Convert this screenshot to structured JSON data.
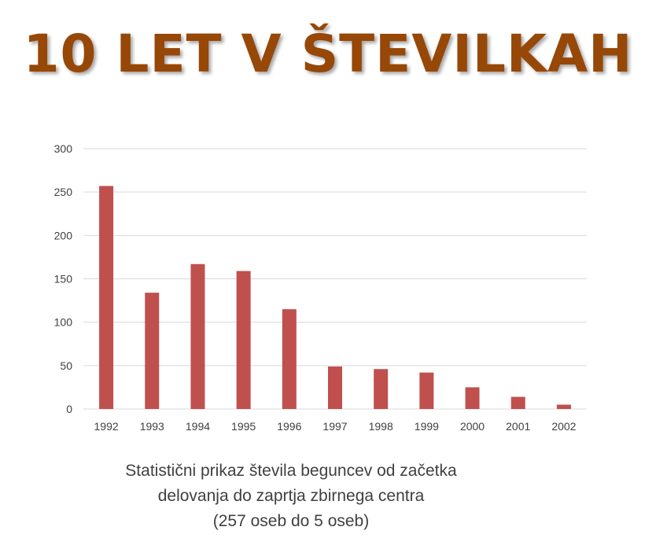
{
  "headline": "10 LET V ŠTEVILKAH",
  "caption": {
    "line1": "Statistični prikaz števila beguncev od začetka",
    "line2": "delovanja do zaprtja zbirnega centra",
    "line3": "(257 oseb do 5 oseb)"
  },
  "colors": {
    "headline": "#974706",
    "bar": "#c0504d",
    "grid": "#d9d9d9",
    "text": "#404040"
  },
  "chart_data": {
    "type": "bar",
    "categories": [
      "1992",
      "1993",
      "1994",
      "1995",
      "1996",
      "1997",
      "1998",
      "1999",
      "2000",
      "2001",
      "2002"
    ],
    "values": [
      257,
      134,
      167,
      159,
      115,
      49,
      46,
      42,
      25,
      14,
      5
    ],
    "ylim": [
      0,
      300
    ],
    "yticks": [
      0,
      50,
      100,
      150,
      200,
      250,
      300
    ],
    "grid": true,
    "legend": "none"
  }
}
